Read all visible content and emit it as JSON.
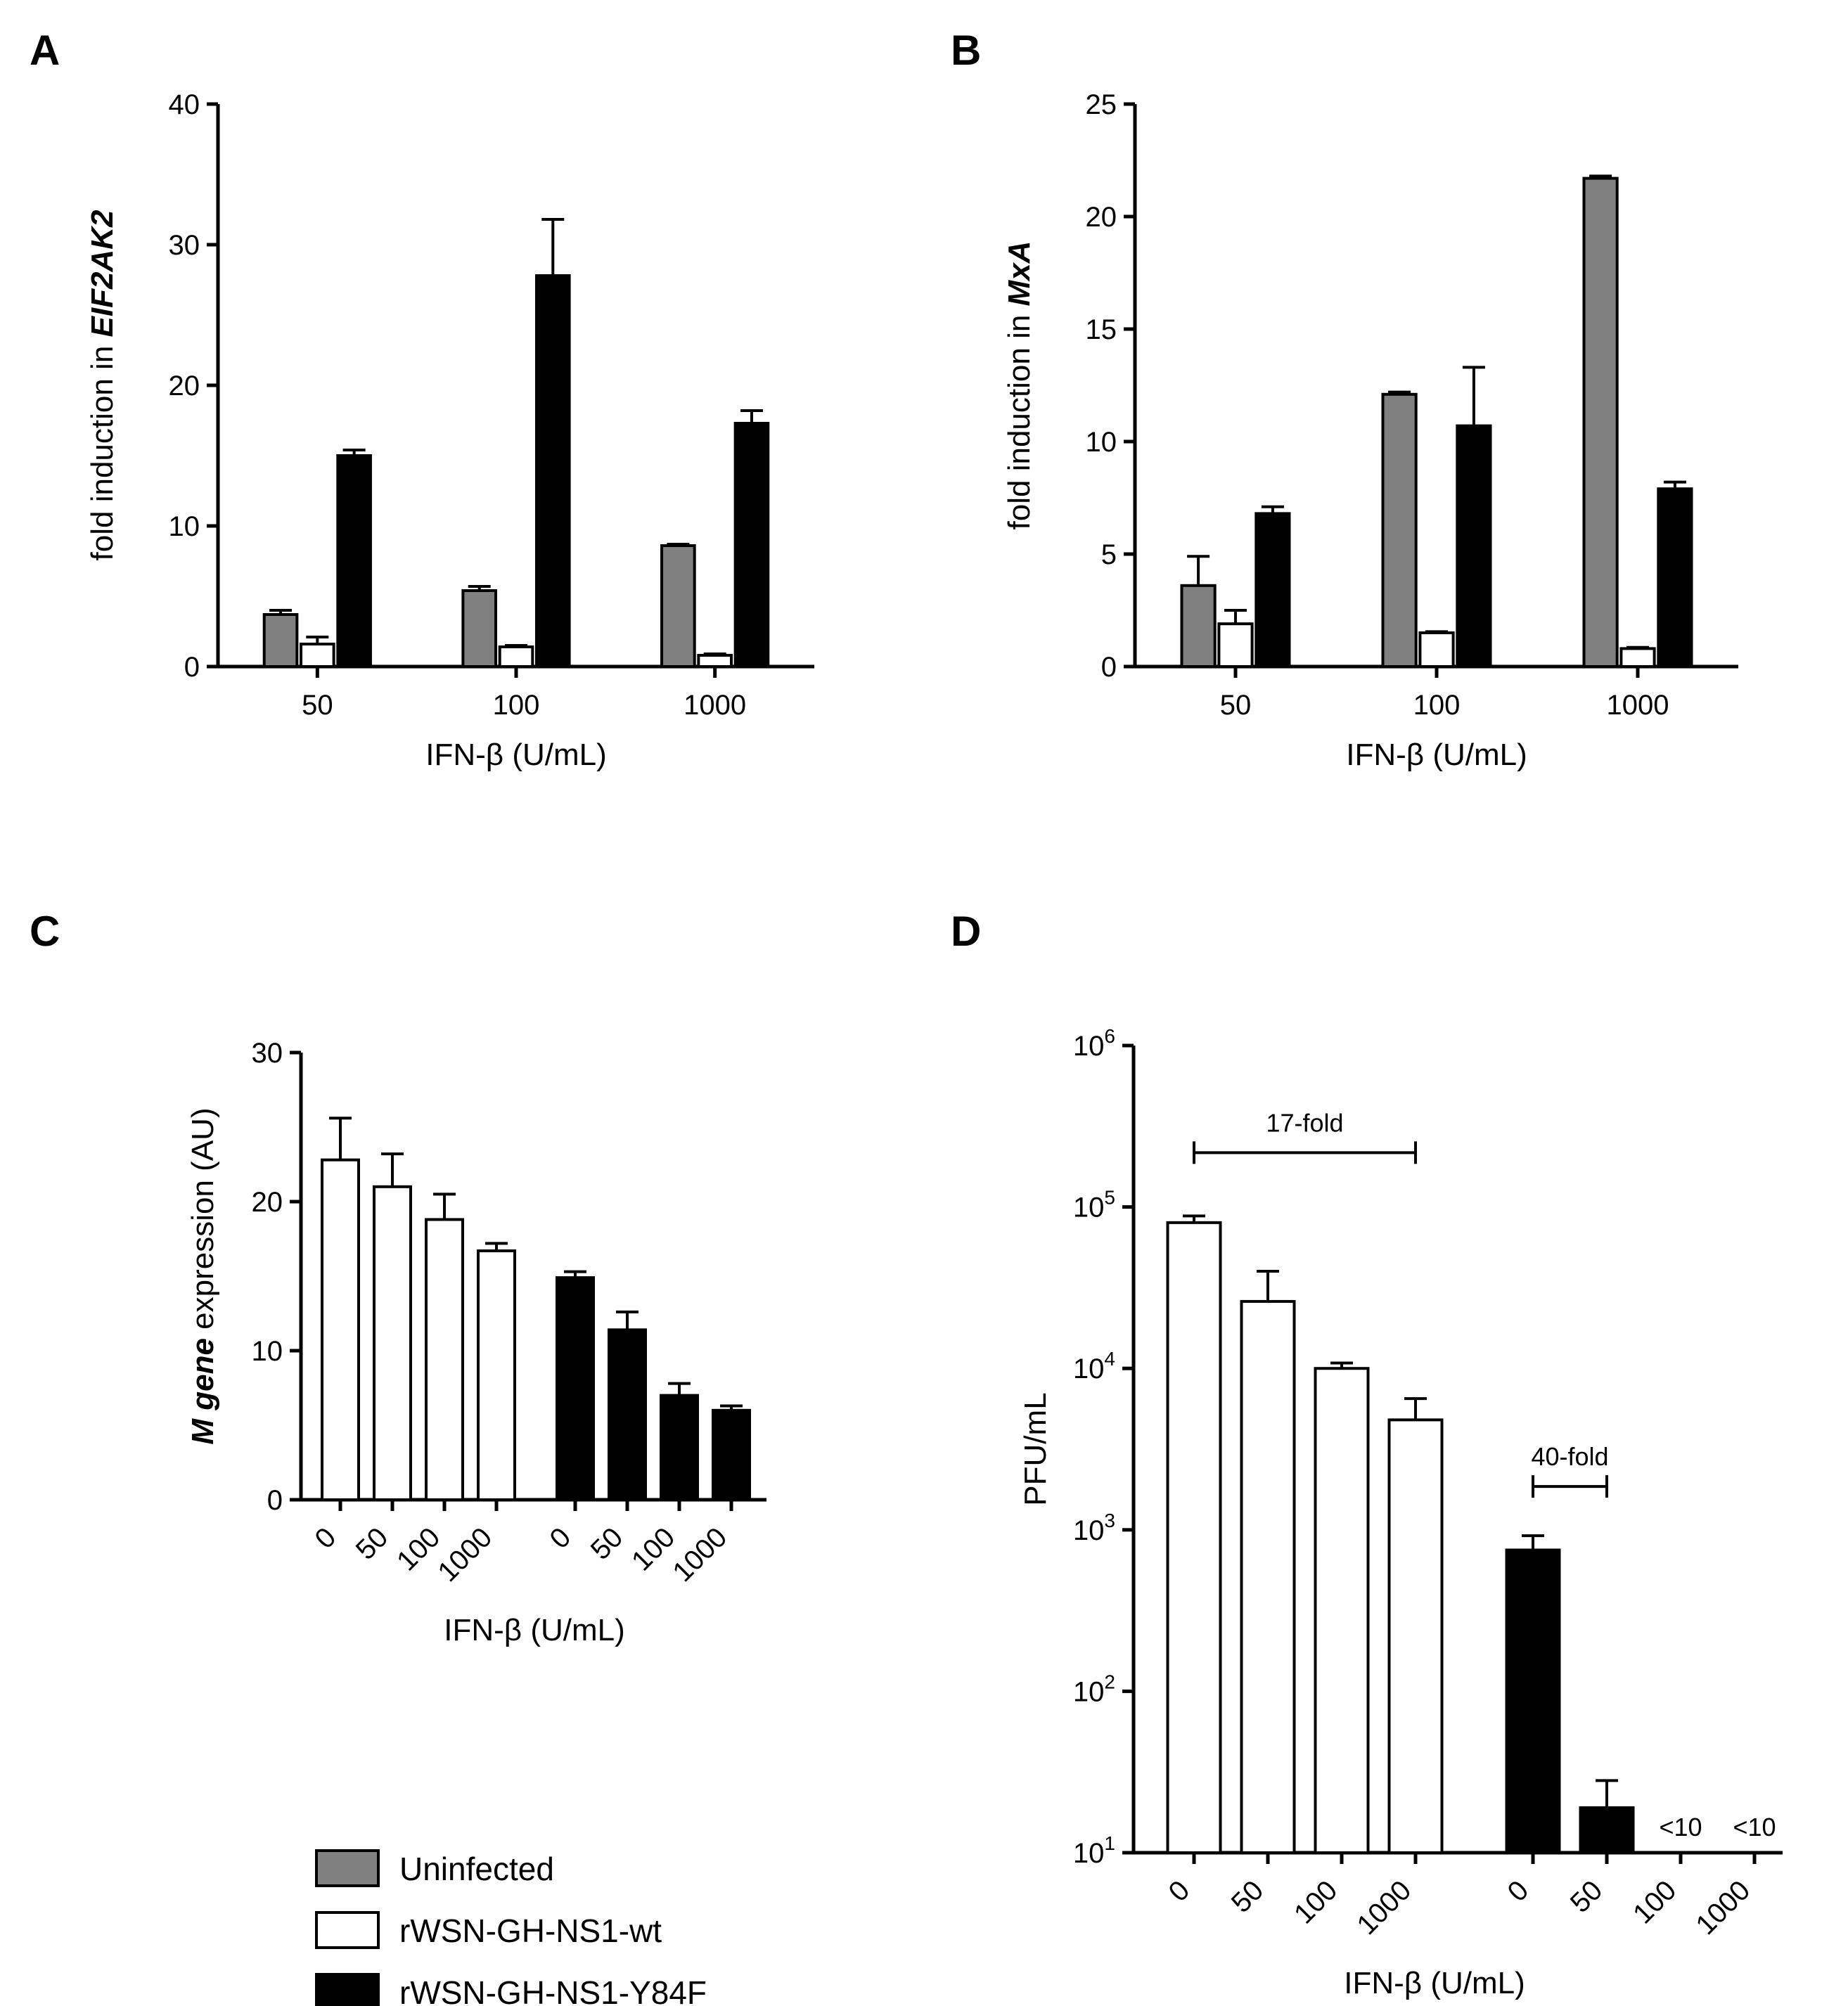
{
  "legend": {
    "items": [
      {
        "label": "Uninfected",
        "color": "#808080"
      },
      {
        "label": "rWSN-GH-NS1-wt",
        "color": "#ffffff"
      },
      {
        "label": "rWSN-GH-NS1-Y84F",
        "color": "#000000"
      }
    ]
  },
  "chart_data": [
    {
      "panel": "A",
      "type": "bar",
      "categories": [
        "50",
        "100",
        "1000"
      ],
      "series": [
        {
          "name": "Uninfected",
          "color": "#808080",
          "values": [
            3.7,
            5.4,
            8.6
          ],
          "errors": [
            0.3,
            0.3,
            0.1
          ]
        },
        {
          "name": "rWSN-GH-NS1-wt",
          "color": "#ffffff",
          "values": [
            1.6,
            1.4,
            0.8
          ],
          "errors": [
            0.5,
            0.1,
            0.1
          ]
        },
        {
          "name": "rWSN-GH-NS1-Y84F",
          "color": "#000000",
          "values": [
            15.0,
            27.8,
            17.3
          ],
          "errors": [
            0.4,
            4.0,
            0.9
          ]
        }
      ],
      "xlabel": "IFN-β (U/mL)",
      "ylabel_pre": "fold induction in ",
      "ylabel_em": "EIF2AK2",
      "ylim": [
        0,
        40
      ],
      "yticks": [
        0,
        10,
        20,
        30,
        40
      ]
    },
    {
      "panel": "B",
      "type": "bar",
      "categories": [
        "50",
        "100",
        "1000"
      ],
      "series": [
        {
          "name": "Uninfected",
          "color": "#808080",
          "values": [
            3.6,
            12.1,
            21.7
          ],
          "errors": [
            1.3,
            0.1,
            0.1
          ]
        },
        {
          "name": "rWSN-GH-NS1-wt",
          "color": "#ffffff",
          "values": [
            1.9,
            1.5,
            0.8
          ],
          "errors": [
            0.6,
            0.05,
            0.05
          ]
        },
        {
          "name": "rWSN-GH-NS1-Y84F",
          "color": "#000000",
          "values": [
            6.8,
            10.7,
            7.9
          ],
          "errors": [
            0.3,
            2.6,
            0.3
          ]
        }
      ],
      "xlabel": "IFN-β (U/mL)",
      "ylabel_pre": "fold induction in ",
      "ylabel_em": "MxA",
      "ylim": [
        0,
        25
      ],
      "yticks": [
        0,
        5,
        10,
        15,
        20,
        25
      ]
    },
    {
      "panel": "C",
      "type": "bar",
      "categories": [
        "0",
        "50",
        "100",
        "1000"
      ],
      "series": [
        {
          "name": "rWSN-GH-NS1-wt",
          "color": "#ffffff",
          "values": [
            22.8,
            21.0,
            18.8,
            16.7
          ],
          "errors": [
            2.8,
            2.2,
            1.7,
            0.5
          ]
        },
        {
          "name": "rWSN-GH-NS1-Y84F",
          "color": "#000000",
          "values": [
            14.9,
            11.4,
            7.0,
            6.0
          ],
          "errors": [
            0.4,
            1.2,
            0.8,
            0.3
          ]
        }
      ],
      "xlabel": "IFN-β (U/mL)",
      "ylabel_em": "M gene",
      "ylabel_post": " expression (AU)",
      "ylim": [
        0,
        30
      ],
      "yticks": [
        0,
        10,
        20,
        30
      ]
    },
    {
      "panel": "D",
      "type": "bar",
      "yscale": "log",
      "categories": [
        "0",
        "50",
        "100",
        "1000"
      ],
      "series": [
        {
          "name": "rWSN-GH-NS1-wt",
          "color": "#ffffff",
          "values": [
            80000,
            26000,
            10000,
            4800
          ],
          "errors_upper": [
            88000,
            40000,
            10800,
            6500
          ]
        },
        {
          "name": "rWSN-GH-NS1-Y84F",
          "color": "#000000",
          "values": [
            750,
            19,
            null,
            null
          ],
          "errors_upper": [
            920,
            28,
            null,
            null
          ]
        }
      ],
      "below_detection": [
        {
          "series": 1,
          "category": 2,
          "text": "<10"
        },
        {
          "series": 1,
          "category": 3,
          "text": "<10"
        }
      ],
      "brackets": [
        {
          "text": "17-fold",
          "series": 0,
          "from": 0,
          "to": 3
        },
        {
          "text": "40-fold",
          "series": 1,
          "from": 0,
          "to": 1
        }
      ],
      "xlabel": "IFN-β (U/mL)",
      "ylabel": "PFU/mL",
      "ylim": [
        10,
        1000000
      ],
      "yticks": [
        {
          "value": 10,
          "base": "10",
          "exp": "1"
        },
        {
          "value": 100,
          "base": "10",
          "exp": "2"
        },
        {
          "value": 1000,
          "base": "10",
          "exp": "3"
        },
        {
          "value": 10000,
          "base": "10",
          "exp": "4"
        },
        {
          "value": 100000,
          "base": "10",
          "exp": "5"
        },
        {
          "value": 1000000,
          "base": "10",
          "exp": "6"
        }
      ]
    }
  ]
}
